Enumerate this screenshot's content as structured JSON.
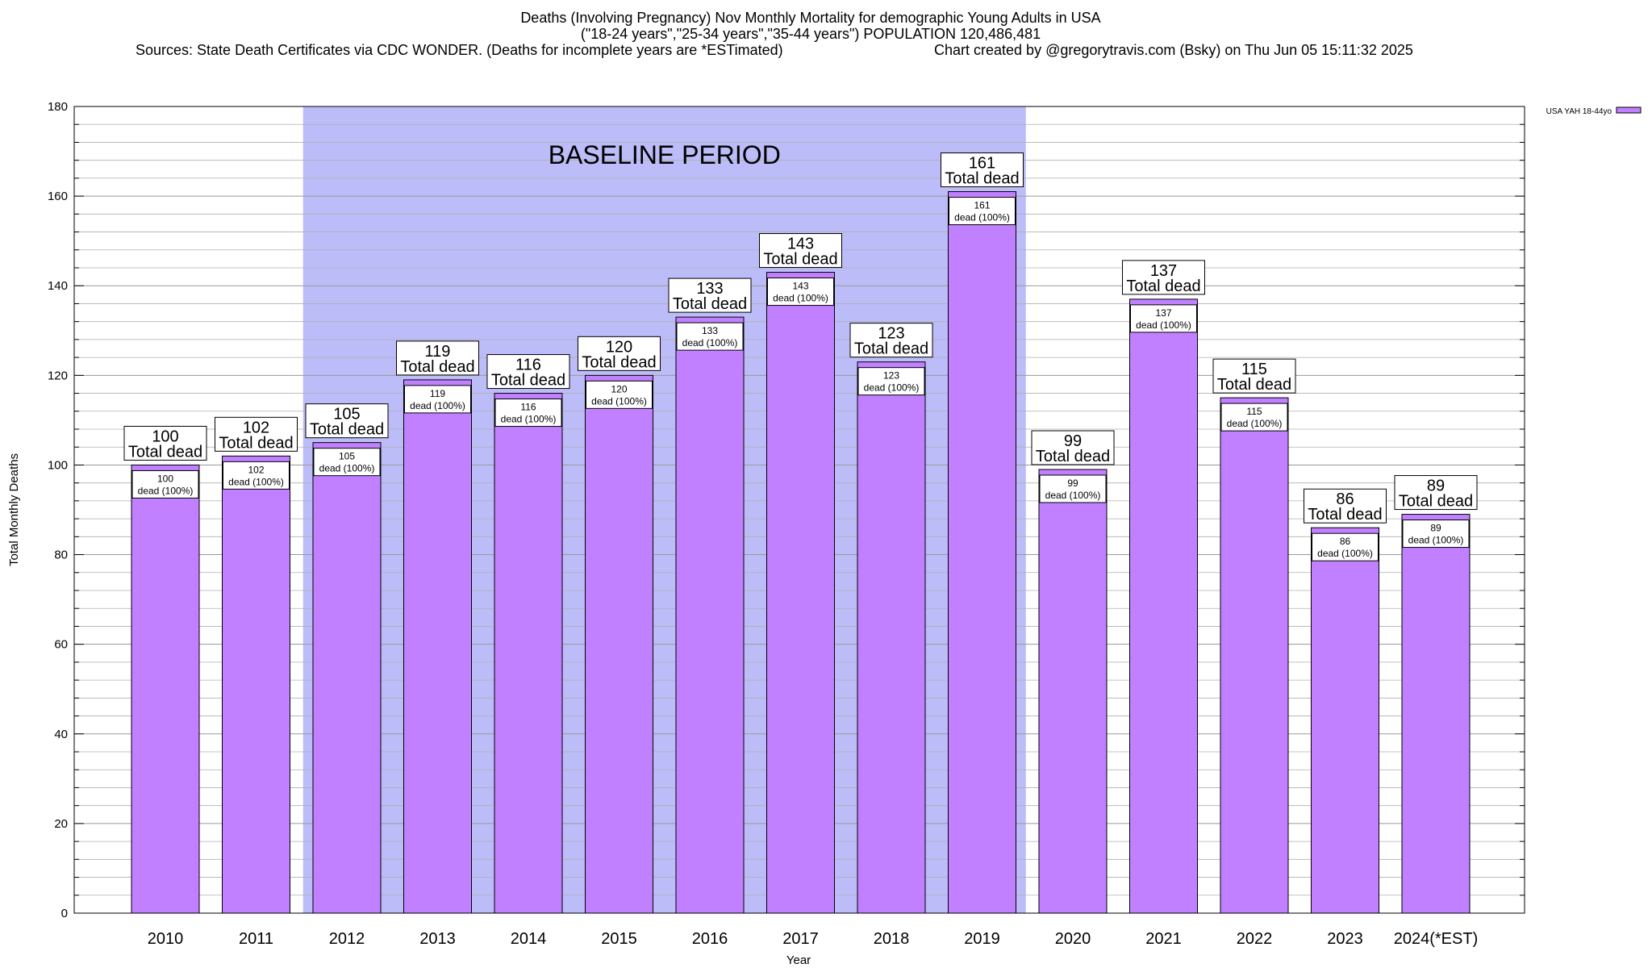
{
  "chart_data": {
    "type": "bar",
    "title_lines": [
      "Deaths (Involving Pregnancy) Nov Monthly Mortality for demographic Young Adults in USA",
      "(\"18-24 years\",\"25-34 years\",\"35-44 years\") POPULATION 120,486,481"
    ],
    "sources": "Sources: State Death Certificates via CDC WONDER. (Deaths for incomplete years are *ESTimated)",
    "credit": "Chart created by @gregorytravis.com (Bsky) on Thu Jun 05 15:11:32 2025",
    "xlabel": "Year",
    "ylabel": "Total Monthly Deaths",
    "ylim": [
      0,
      180
    ],
    "yticks": [
      0,
      20,
      40,
      60,
      80,
      100,
      120,
      140,
      160,
      180
    ],
    "minor_grid_step": 4,
    "grid": true,
    "legend": {
      "placement": "top-right",
      "label": "USA YAH 18-44yo"
    },
    "baseline": {
      "label": "BASELINE PERIOD",
      "start": "2012",
      "end": "2019"
    },
    "top_label_suffix": "Total dead",
    "inner_label_suffix": "dead (100%)",
    "categories": [
      "2010",
      "2011",
      "2012",
      "2013",
      "2014",
      "2015",
      "2016",
      "2017",
      "2018",
      "2019",
      "2020",
      "2021",
      "2022",
      "2023",
      "2024(*EST)"
    ],
    "values": [
      100,
      102,
      105,
      119,
      116,
      120,
      133,
      143,
      123,
      161,
      99,
      137,
      115,
      86,
      89
    ],
    "colors": {
      "bar": "#c080ff",
      "baseline": "#bcbcf8",
      "grid": "#b0b0b0"
    }
  }
}
